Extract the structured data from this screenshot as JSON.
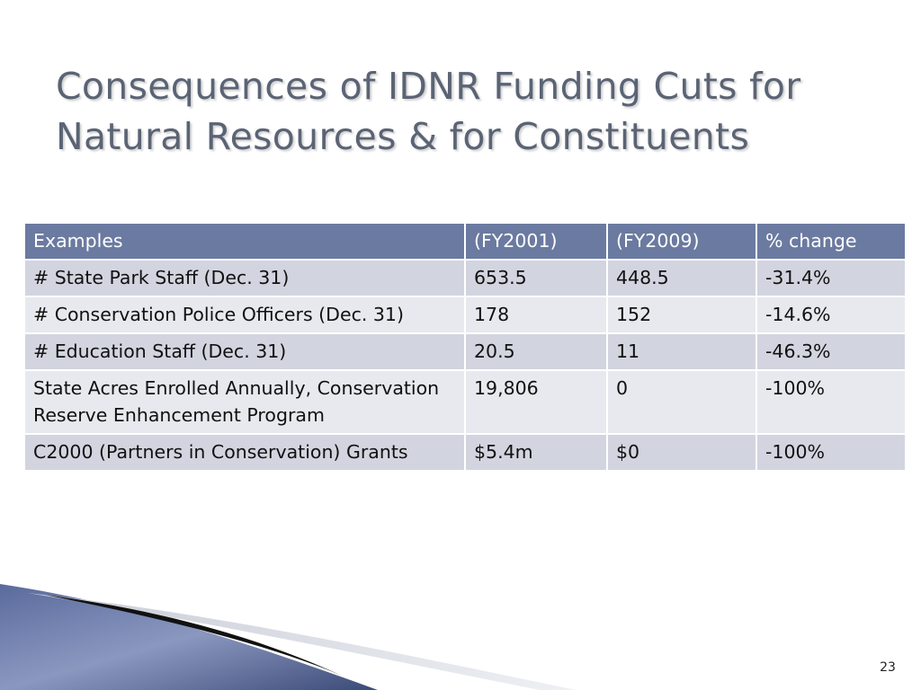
{
  "slide": {
    "title_lines": [
      "Consequences of IDNR Funding Cuts for",
      "Natural Resources &  for Constituents"
    ],
    "page_number": "23"
  },
  "table": {
    "headers": [
      "Examples",
      "(FY2001)",
      "(FY2009)",
      "% change"
    ],
    "rows": [
      [
        "# State Park Staff (Dec. 31)",
        "653.5",
        "448.5",
        "-31.4%"
      ],
      [
        "# Conservation Police Officers (Dec. 31)",
        "178",
        "152",
        "-14.6%"
      ],
      [
        "# Education Staff (Dec. 31)",
        "20.5",
        "11",
        "-46.3%"
      ],
      [
        "State Acres Enrolled Annually, Conservation Reserve Enhancement Program",
        "19,806",
        "0",
        "-100%"
      ],
      [
        "C2000 (Partners in Conservation) Grants",
        "$5.4m",
        "$0",
        "-100%"
      ]
    ]
  },
  "colors": {
    "title": "#5b6475",
    "header_bg": "#6b7aa0",
    "row_dark": "#d2d5df",
    "row_light": "#e8e9ee",
    "decor_blue": "#4a5a8a"
  }
}
